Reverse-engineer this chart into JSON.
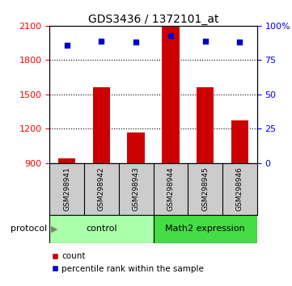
{
  "title": "GDS3436 / 1372101_at",
  "samples": [
    "GSM298941",
    "GSM298942",
    "GSM298943",
    "GSM298944",
    "GSM298945",
    "GSM298946"
  ],
  "bar_values": [
    940,
    1560,
    1170,
    2090,
    1560,
    1270
  ],
  "bar_base": 900,
  "percentile_values": [
    86,
    89,
    88,
    93,
    89,
    88
  ],
  "ylim_left": [
    900,
    2100
  ],
  "ylim_right": [
    0,
    100
  ],
  "yticks_left": [
    900,
    1200,
    1500,
    1800,
    2100
  ],
  "yticks_right": [
    0,
    25,
    50,
    75,
    100
  ],
  "ytick_labels_right": [
    "0",
    "25",
    "50",
    "75",
    "100%"
  ],
  "bar_color": "#cc0000",
  "scatter_color": "#0000cc",
  "control_color": "#aaffaa",
  "math2_color": "#44dd44",
  "sample_bg_color": "#cccccc",
  "control_label": "control",
  "math2_label": "Math2 expression",
  "protocol_label": "protocol",
  "legend_bar": "count",
  "legend_scatter": "percentile rank within the sample",
  "control_indices": [
    0,
    1,
    2
  ],
  "math2_indices": [
    3,
    4,
    5
  ],
  "figsize": [
    3.61,
    3.54
  ],
  "dpi": 100
}
